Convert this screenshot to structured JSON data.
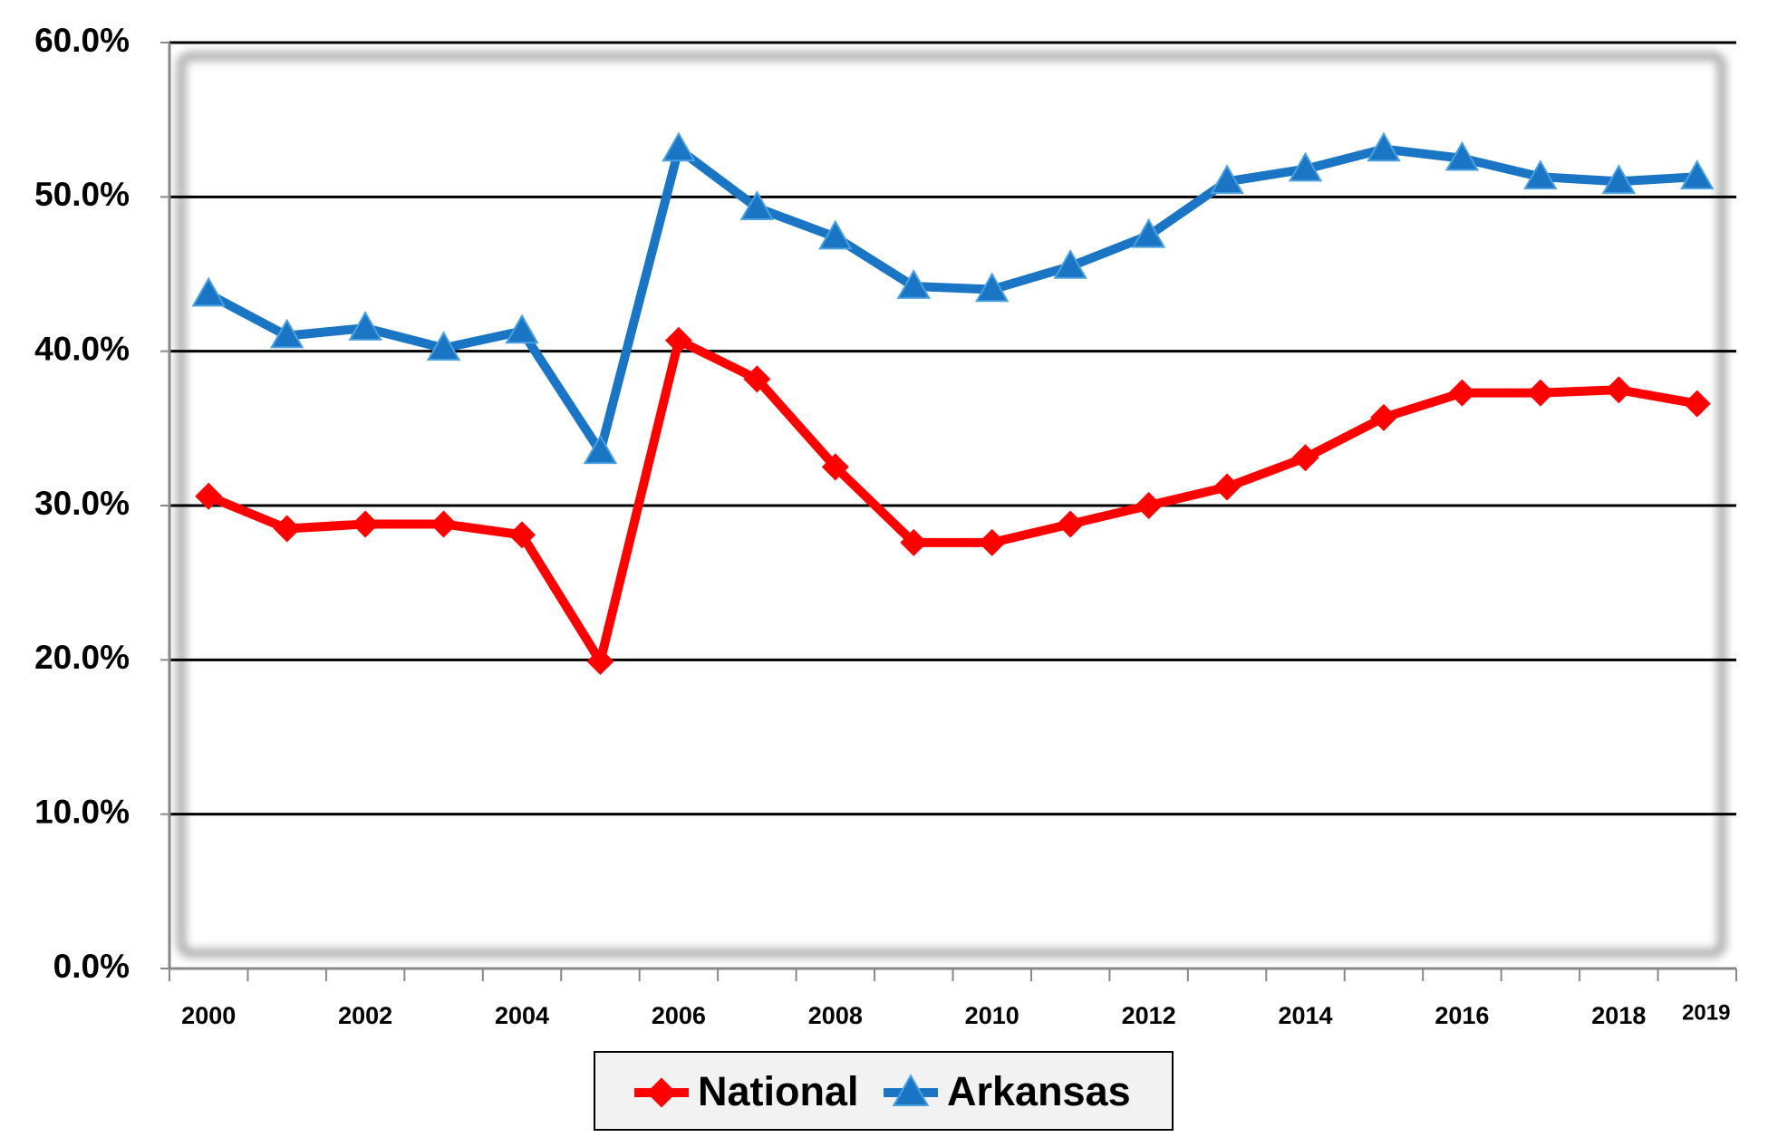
{
  "chart_data": {
    "type": "line",
    "categories": [
      "2000",
      null,
      "2002",
      null,
      "2004",
      null,
      "2006",
      null,
      "2008",
      null,
      "2010",
      null,
      "2012",
      null,
      "2014",
      null,
      "2016",
      null,
      "2018",
      "2019"
    ],
    "series": [
      {
        "name": "National",
        "color": "#ff0000",
        "marker": "diamond",
        "values": [
          30.6,
          28.5,
          28.8,
          28.8,
          28.1,
          19.9,
          40.7,
          38.2,
          32.5,
          27.6,
          27.6,
          28.8,
          30.0,
          31.2,
          33.1,
          35.7,
          37.3,
          37.3,
          37.5,
          36.6
        ]
      },
      {
        "name": "Arkansas",
        "color": "#1a75c4",
        "marker": "triangle",
        "values": [
          43.7,
          41.0,
          41.5,
          40.2,
          41.3,
          33.5,
          53.1,
          49.3,
          47.4,
          44.2,
          44.0,
          45.5,
          47.5,
          51.0,
          51.8,
          53.1,
          52.5,
          51.3,
          51.0,
          51.3
        ]
      }
    ],
    "ylim": [
      0,
      60
    ],
    "yticks": [
      {
        "value": 0,
        "label": "0.0%"
      },
      {
        "value": 10,
        "label": "10.0%"
      },
      {
        "value": 20,
        "label": "20.0%"
      },
      {
        "value": 30,
        "label": "30.0%"
      },
      {
        "value": 40,
        "label": "40.0%"
      },
      {
        "value": 50,
        "label": "50.0%"
      },
      {
        "value": 60,
        "label": "60.0%"
      }
    ],
    "grid": true,
    "legend": "bottom"
  }
}
